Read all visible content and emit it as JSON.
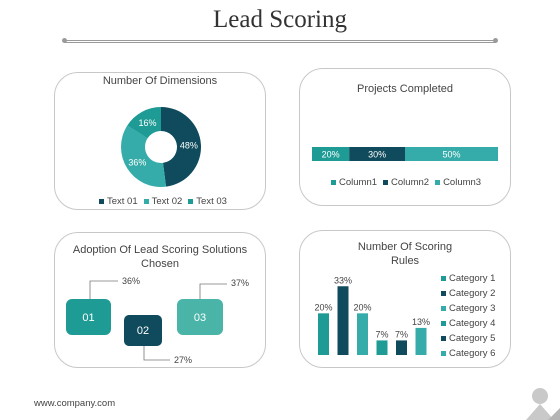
{
  "page": {
    "title": "Lead Scoring",
    "footer": "www.company.com"
  },
  "colors": {
    "teal": "#1f9b95",
    "dark": "#0f4b5c",
    "mid": "#35aca9",
    "lightteal": "#49b4a7",
    "gray": "#9a9a9a"
  },
  "donut": {
    "title": "Number Of Dimensions",
    "chart_data": {
      "type": "pie",
      "title": "Number Of Dimensions",
      "slices": [
        {
          "label": "Text 01",
          "value": 48,
          "display": "48%",
          "color": "#0f4b5c"
        },
        {
          "label": "Text 02",
          "value": 36,
          "display": "36%",
          "color": "#35aca9"
        },
        {
          "label": "Text 03",
          "value": 16,
          "display": "16%",
          "color": "#1f9b95"
        }
      ]
    },
    "legend": [
      {
        "label": "Text 01",
        "color": "#0f4b5c"
      },
      {
        "label": "Text 02",
        "color": "#35aca9"
      },
      {
        "label": "Text 03",
        "color": "#1f9b95"
      }
    ]
  },
  "projects": {
    "title": "Projects Completed",
    "chart_data": {
      "type": "bar",
      "title": "Projects Completed",
      "series": [
        {
          "name": "Column1",
          "value": 20,
          "display": "20%",
          "color": "#1f9b95"
        },
        {
          "name": "Column2",
          "value": 30,
          "display": "30%",
          "color": "#0f4b5c"
        },
        {
          "name": "Column3",
          "value": 50,
          "display": "50%",
          "color": "#35aca9"
        }
      ]
    },
    "legend": [
      {
        "label": "Column1",
        "color": "#1f9b95"
      },
      {
        "label": "Column2",
        "color": "#0f4b5c"
      },
      {
        "label": "Column3",
        "color": "#35aca9"
      }
    ]
  },
  "adoption": {
    "title_line1": "Adoption Of Lead Scoring Solutions",
    "title_line2": "Chosen",
    "boxes": [
      {
        "label": "01",
        "value": "36%",
        "color": "#1f9b95"
      },
      {
        "label": "02",
        "value": "27%",
        "color": "#0f4b5c"
      },
      {
        "label": "03",
        "value": "37%",
        "color": "#49b4a7"
      }
    ]
  },
  "rules": {
    "title_line1": "Number Of Scoring",
    "title_line2": "Rules",
    "chart_data": {
      "type": "bar",
      "title": "Number Of Scoring Rules",
      "categories": [
        "Category 1",
        "Category 2",
        "Category 3",
        "Category 4",
        "Category 5",
        "Category 6"
      ],
      "values": [
        20,
        33,
        20,
        7,
        7,
        13
      ],
      "labels": [
        "20%",
        "33%",
        "20%",
        "7%",
        "7%",
        "13%"
      ],
      "colors": [
        "#1f9b95",
        "#0f4b5c",
        "#35aca9",
        "#1f9b95",
        "#0f4b5c",
        "#35aca9"
      ],
      "ylim": [
        0,
        35
      ]
    }
  }
}
